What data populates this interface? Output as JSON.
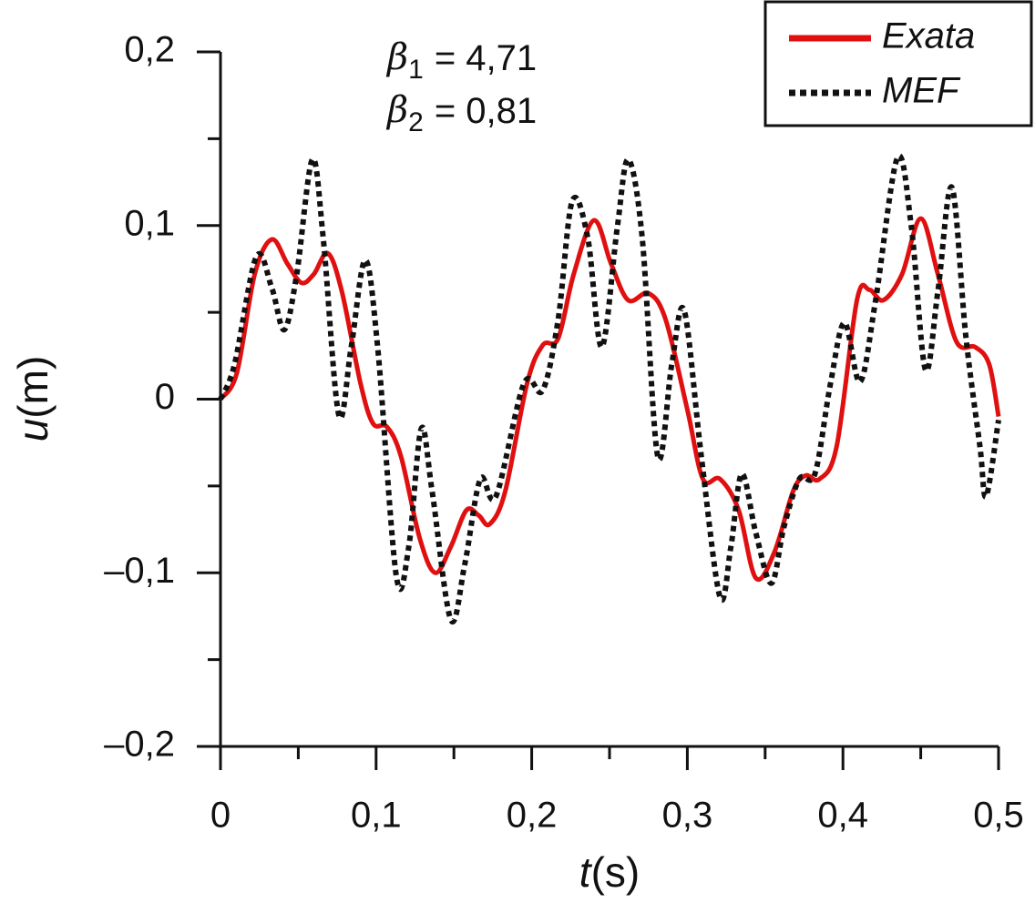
{
  "chart_data": {
    "type": "line",
    "annotations": [
      {
        "symbol": "β",
        "subscript": "1",
        "text": "= 4,71"
      },
      {
        "symbol": "β",
        "subscript": "2",
        "text": "= 0,81"
      }
    ],
    "x_label": {
      "var": "t",
      "unit": "(s)"
    },
    "y_label": {
      "var": "u",
      "unit": "(m)"
    },
    "xlim": [
      0,
      0.5
    ],
    "ylim": [
      -0.2,
      0.2
    ],
    "xticks": [
      0,
      {
        "value": 0.1,
        "label": "0,1"
      },
      {
        "value": 0.2,
        "label": "0,2"
      },
      {
        "value": 0.3,
        "label": "0,3"
      },
      {
        "value": 0.4,
        "label": "0,4"
      },
      {
        "value": 0.5,
        "label": "0,5"
      }
    ],
    "yticks": [
      {
        "value": -0.2,
        "label": "–0,2"
      },
      {
        "value": -0.1,
        "label": "–0,1"
      },
      0,
      {
        "value": 0.1,
        "label": "0,1"
      },
      {
        "value": 0.2,
        "label": "0,2"
      }
    ],
    "legend": "upper right",
    "series": [
      {
        "name": "Exata",
        "color": "#e01010",
        "dash": "solid",
        "x": [
          0,
          0.0105,
          0.022,
          0.033,
          0.043,
          0.052,
          0.06,
          0.069,
          0.078,
          0.09,
          0.098,
          0.107,
          0.116,
          0.128,
          0.138,
          0.148,
          0.158,
          0.166,
          0.173,
          0.183,
          0.197,
          0.207,
          0.217,
          0.227,
          0.24,
          0.251,
          0.262,
          0.275,
          0.286,
          0.3,
          0.31,
          0.321,
          0.333,
          0.344,
          0.356,
          0.368,
          0.376,
          0.385,
          0.396,
          0.409,
          0.417,
          0.426,
          0.438,
          0.45,
          0.461,
          0.473,
          0.485,
          0.494,
          0.5
        ],
        "values": [
          0,
          0.015,
          0.072,
          0.092,
          0.078,
          0.067,
          0.072,
          0.084,
          0.062,
          0.009,
          -0.014,
          -0.016,
          -0.033,
          -0.08,
          -0.1,
          -0.085,
          -0.064,
          -0.067,
          -0.072,
          -0.053,
          0.009,
          0.031,
          0.035,
          0.072,
          0.103,
          0.078,
          0.057,
          0.061,
          0.046,
          -0.006,
          -0.046,
          -0.046,
          -0.064,
          -0.103,
          -0.088,
          -0.053,
          -0.044,
          -0.046,
          -0.027,
          0.057,
          0.063,
          0.057,
          0.072,
          0.104,
          0.072,
          0.033,
          0.03,
          0.02,
          -0.01
        ]
      },
      {
        "name": "MEF",
        "color": "#111111",
        "dash": "dotted",
        "x": [
          0,
          0.009,
          0.023,
          0.033,
          0.041,
          0.049,
          0.059,
          0.066,
          0.076,
          0.084,
          0.093,
          0.101,
          0.113,
          0.121,
          0.129,
          0.136,
          0.148,
          0.157,
          0.167,
          0.177,
          0.195,
          0.207,
          0.217,
          0.226,
          0.236,
          0.245,
          0.255,
          0.262,
          0.271,
          0.281,
          0.29,
          0.298,
          0.309,
          0.321,
          0.328,
          0.335,
          0.344,
          0.354,
          0.362,
          0.372,
          0.382,
          0.392,
          0.401,
          0.411,
          0.421,
          0.435,
          0.444,
          0.453,
          0.461,
          0.47,
          0.479,
          0.488,
          0.492,
          0.5
        ],
        "values": [
          0,
          0.02,
          0.082,
          0.064,
          0.04,
          0.072,
          0.138,
          0.093,
          -0.009,
          0.03,
          0.08,
          0.03,
          -0.102,
          -0.085,
          -0.017,
          -0.053,
          -0.127,
          -0.095,
          -0.046,
          -0.056,
          0.009,
          0.005,
          0.046,
          0.114,
          0.093,
          0.03,
          0.099,
          0.138,
          0.093,
          -0.033,
          0.02,
          0.051,
          -0.033,
          -0.114,
          -0.085,
          -0.043,
          -0.077,
          -0.106,
          -0.074,
          -0.046,
          -0.043,
          0.009,
          0.044,
          0.01,
          0.057,
          0.139,
          0.099,
          0.017,
          0.062,
          0.122,
          0.036,
          -0.027,
          -0.056,
          -0.012
        ]
      }
    ]
  }
}
